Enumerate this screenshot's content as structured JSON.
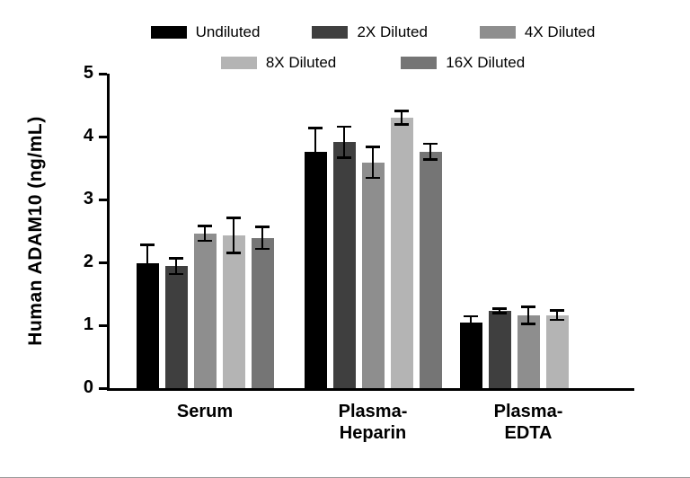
{
  "page": {
    "background": "#ffffff"
  },
  "chart_data": {
    "type": "bar",
    "title": "",
    "ylabel": "Human ADAM10 (ng/mL)",
    "xlabel": "",
    "ylim": [
      0,
      5
    ],
    "yticks": [
      0,
      1,
      2,
      3,
      4,
      5
    ],
    "grid": false,
    "legend_position": "top",
    "error_bars": true,
    "categories": [
      "Serum",
      "Plasma-\nHeparin",
      "Plasma-\nEDTA"
    ],
    "series": [
      {
        "name": "Undiluted",
        "color": "#000000",
        "values": [
          1.99,
          3.76,
          1.04
        ],
        "errors": [
          0.29,
          0.38,
          0.11
        ]
      },
      {
        "name": "2X Diluted",
        "color": "#3f3f3f",
        "values": [
          1.94,
          3.91,
          1.23
        ],
        "errors": [
          0.13,
          0.25,
          0.04
        ]
      },
      {
        "name": "4X Diluted",
        "color": "#8e8e8e",
        "values": [
          2.46,
          3.59,
          1.16
        ],
        "errors": [
          0.12,
          0.25,
          0.14
        ]
      },
      {
        "name": "8X Diluted",
        "color": "#b4b4b4",
        "values": [
          2.43,
          4.3,
          1.16
        ],
        "errors": [
          0.28,
          0.11,
          0.08
        ]
      },
      {
        "name": "16X Diluted",
        "color": "#757575",
        "values": [
          2.39,
          3.76,
          null
        ],
        "errors": [
          0.18,
          0.13,
          null
        ]
      }
    ]
  }
}
